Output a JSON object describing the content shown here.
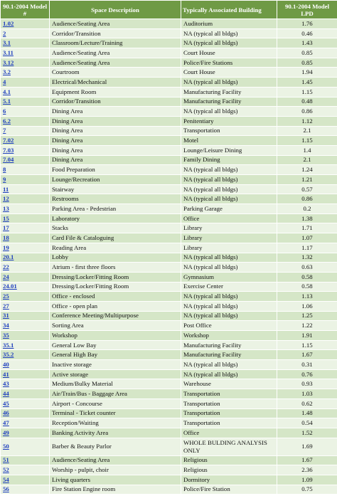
{
  "headers": {
    "model": "90.1-2004 Model #",
    "space": "Space Description",
    "building": "Typically Associated Building",
    "lpd": "90.1-2004 Model LPD"
  },
  "rows": [
    {
      "model": "1.02",
      "space": "Audience/Seating Area",
      "building": "Auditorium",
      "lpd": "1.76"
    },
    {
      "model": "2",
      "space": "Corridor/Transition",
      "building": "NA (typical all bldgs)",
      "lpd": "0.46"
    },
    {
      "model": "3.1",
      "space": "Classroom/Lecture/Training",
      "building": "NA (typical all bldgs)",
      "lpd": "1.43"
    },
    {
      "model": "3.11",
      "space": "Audience/Seating Area",
      "building": "Court House",
      "lpd": "0.85"
    },
    {
      "model": "3.12",
      "space": "Audience/Seating Area",
      "building": "Police/Fire Stations",
      "lpd": "0.85"
    },
    {
      "model": "3.2",
      "space": "Courtroom",
      "building": "Court House",
      "lpd": "1.94"
    },
    {
      "model": "4",
      "space": "Electrical/Mechanical",
      "building": "NA (typical all bldgs)",
      "lpd": "1.45"
    },
    {
      "model": "4.1",
      "space": "Equipment Room",
      "building": "Manufacturing Facility",
      "lpd": "1.15"
    },
    {
      "model": "5.1",
      "space": "Corridor/Transition",
      "building": "Manufacturing Facility",
      "lpd": "0.48"
    },
    {
      "model": "6",
      "space": "Dining Area",
      "building": "NA (typical all bldgs)",
      "lpd": "0.86"
    },
    {
      "model": "6.2",
      "space": "Dining Area",
      "building": "Penitentiary",
      "lpd": "1.12"
    },
    {
      "model": "7",
      "space": "Dining Area",
      "building": "Transportation",
      "lpd": "2.1"
    },
    {
      "model": "7.02",
      "space": "Dining Area",
      "building": "Motel",
      "lpd": "1.15"
    },
    {
      "model": "7.03",
      "space": "Dining Area",
      "building": "Lounge/Leisure Dining",
      "lpd": "1.4"
    },
    {
      "model": "7.04",
      "space": "Dining Area",
      "building": "Family Dining",
      "lpd": "2.1"
    },
    {
      "model": "8",
      "space": "Food Preparation",
      "building": "NA (typical all bldgs)",
      "lpd": "1.24"
    },
    {
      "model": "9",
      "space": "Lounge/Recreation",
      "building": "NA (typical all bldgs)",
      "lpd": "1.21"
    },
    {
      "model": "11",
      "space": "Stairway",
      "building": "NA (typical all bldgs)",
      "lpd": "0.57"
    },
    {
      "model": "12",
      "space": "Restrooms",
      "building": "NA (typical all bldgs)",
      "lpd": "0.86"
    },
    {
      "model": "13",
      "space": "Parking Area - Pedestrian",
      "building": "Parking Garage",
      "lpd": "0.2"
    },
    {
      "model": "15",
      "space": "Laboratory",
      "building": "Office",
      "lpd": "1.38"
    },
    {
      "model": "17",
      "space": "Stacks",
      "building": "Library",
      "lpd": "1.71"
    },
    {
      "model": "18",
      "space": "Card File & Cataloguing",
      "building": "Library",
      "lpd": "1.07"
    },
    {
      "model": "19",
      "space": "Reading Area",
      "building": "Library",
      "lpd": "1.17"
    },
    {
      "model": "20.1",
      "space": "Lobby",
      "building": "NA (typical all bldgs)",
      "lpd": "1.32"
    },
    {
      "model": "22",
      "space": "Atrium - first three floors",
      "building": "NA (typical all bldgs)",
      "lpd": "0.63"
    },
    {
      "model": "24",
      "space": "Dressing/Locker/Fitting Room",
      "building": "Gymnasium",
      "lpd": "0.58"
    },
    {
      "model": "24.01",
      "space": "Dressing/Locker/Fitting Room",
      "building": "Exercise Center",
      "lpd": "0.58"
    },
    {
      "model": "25",
      "space": "Office - enclosed",
      "building": "NA (typical all bldgs)",
      "lpd": "1.13"
    },
    {
      "model": "27",
      "space": "Office - open plan",
      "building": "NA (typical all bldgs)",
      "lpd": "1.06"
    },
    {
      "model": "31",
      "space": "Conference Meeting/Multipurpose",
      "building": "NA (typical all bldgs)",
      "lpd": "1.25"
    },
    {
      "model": "34",
      "space": "Sorting Area",
      "building": "Post Office",
      "lpd": "1.22"
    },
    {
      "model": "35",
      "space": "Workshop",
      "building": "Workshop",
      "lpd": "1.91"
    },
    {
      "model": "35.1",
      "space": "General Low Bay",
      "building": "Manufacturing Facility",
      "lpd": "1.15"
    },
    {
      "model": "35.2",
      "space": "General High Bay",
      "building": "Manufacturing Facility",
      "lpd": "1.67"
    },
    {
      "model": "40",
      "space": "Inactive storage",
      "building": "NA (typical all bldgs)",
      "lpd": "0.31"
    },
    {
      "model": "41",
      "space": "Active storage",
      "building": "NA (typical all bldgs)",
      "lpd": "0.76"
    },
    {
      "model": "43",
      "space": "Medium/Bulky Material",
      "building": "Warehouse",
      "lpd": "0.93"
    },
    {
      "model": "44",
      "space": "Air/Train/Bus - Baggage Area",
      "building": "Transportation",
      "lpd": "1.03"
    },
    {
      "model": "45",
      "space": "Airport - Concourse",
      "building": "Transportation",
      "lpd": "0.62"
    },
    {
      "model": "46",
      "space": "Terminal - Ticket counter",
      "building": "Transportation",
      "lpd": "1.48"
    },
    {
      "model": "47",
      "space": "Reception/Waiting",
      "building": "Transportation",
      "lpd": "0.54"
    },
    {
      "model": "49",
      "space": "Banking Activity Area",
      "building": "Office",
      "lpd": "1.52"
    },
    {
      "model": "50",
      "space": "Barber & Beauty Parlor",
      "building": "WHOLE BULDING ANALYSIS ONLY",
      "lpd": "1.69",
      "tall": true
    },
    {
      "model": "51",
      "space": "Audience/Seating Area",
      "building": "Religious",
      "lpd": "1.67"
    },
    {
      "model": "52",
      "space": "Worship - pulpit, choir",
      "building": "Religious",
      "lpd": "2.36"
    },
    {
      "model": "54",
      "space": "Living quarters",
      "building": "Dormitory",
      "lpd": "1.09"
    },
    {
      "model": "56",
      "space": "Fire Station Engine room",
      "building": "Police/Fire Station",
      "lpd": "0.75"
    }
  ]
}
